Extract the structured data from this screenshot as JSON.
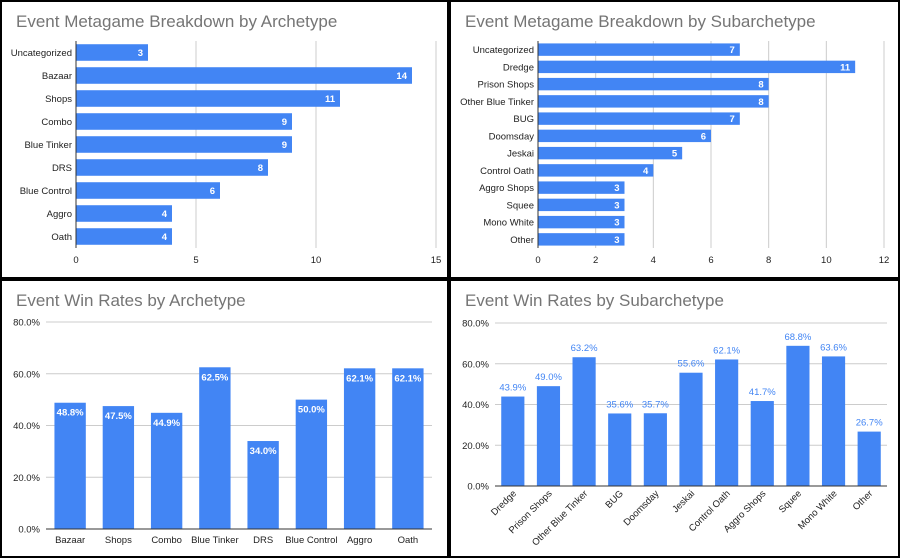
{
  "colors": {
    "bar": "#4285F4",
    "grid": "#cccccc",
    "axis": "#333333",
    "label": "#222222",
    "title": "#757575",
    "value_inside": "#ffffff",
    "value_outside": "#4285F4"
  },
  "chart_data": [
    {
      "type": "bar",
      "orientation": "horizontal",
      "title": "Event Metagame Breakdown by Archetype",
      "categories": [
        "Uncategorized",
        "Bazaar",
        "Shops",
        "Combo",
        "Blue Tinker",
        "DRS",
        "Blue Control",
        "Aggro",
        "Oath"
      ],
      "values": [
        3,
        14,
        11,
        9,
        9,
        8,
        6,
        4,
        4
      ],
      "value_labels": [
        "3",
        "14",
        "11",
        "9",
        "9",
        "8",
        "6",
        "4",
        "4"
      ],
      "xlim": [
        0,
        15
      ],
      "xticks": [
        "0",
        "5",
        "10",
        "15"
      ],
      "xtick_values": [
        0,
        5,
        10,
        15
      ],
      "grid": true,
      "legend": "none"
    },
    {
      "type": "bar",
      "orientation": "horizontal",
      "title": "Event Metagame Breakdown by Subarchetype",
      "categories": [
        "Uncategorized",
        "Dredge",
        "Prison Shops",
        "Other Blue Tinker",
        "BUG",
        "Doomsday",
        "Jeskai",
        "Control Oath",
        "Aggro Shops",
        "Squee",
        "Mono White",
        "Other"
      ],
      "values": [
        7,
        11,
        8,
        8,
        7,
        6,
        5,
        4,
        3,
        3,
        3,
        3
      ],
      "value_labels": [
        "7",
        "11",
        "8",
        "8",
        "7",
        "6",
        "5",
        "4",
        "3",
        "3",
        "3",
        "3"
      ],
      "xlim": [
        0,
        12
      ],
      "xticks": [
        "0",
        "2",
        "4",
        "6",
        "8",
        "10",
        "12"
      ],
      "xtick_values": [
        0,
        2,
        4,
        6,
        8,
        10,
        12
      ],
      "grid": true,
      "legend": "none"
    },
    {
      "type": "bar",
      "orientation": "vertical",
      "title": "Event Win Rates by Archetype",
      "categories": [
        "Bazaar",
        "Shops",
        "Combo",
        "Blue Tinker",
        "DRS",
        "Blue Control",
        "Aggro",
        "Oath"
      ],
      "values": [
        48.8,
        47.5,
        44.9,
        62.5,
        34.0,
        50.0,
        62.1,
        62.1
      ],
      "value_labels": [
        "48.8%",
        "47.5%",
        "44.9%",
        "62.5%",
        "34.0%",
        "50.0%",
        "62.1%",
        "62.1%"
      ],
      "ylim": [
        0,
        80
      ],
      "yticks": [
        "0.0%",
        "20.0%",
        "40.0%",
        "60.0%",
        "80.0%"
      ],
      "ytick_values": [
        0,
        20,
        40,
        60,
        80
      ],
      "grid": true,
      "legend": "none"
    },
    {
      "type": "bar",
      "orientation": "vertical",
      "title": "Event Win Rates by Subarchetype",
      "categories": [
        "Dredge",
        "Prison Shops",
        "Other Blue Tinker",
        "BUG",
        "Doomsday",
        "Jeskai",
        "Control Oath",
        "Aggro Shops",
        "Squee",
        "Mono White",
        "Other"
      ],
      "values": [
        43.9,
        49.0,
        63.2,
        35.6,
        35.7,
        55.6,
        62.1,
        41.7,
        68.8,
        63.6,
        26.7
      ],
      "value_labels": [
        "43.9%",
        "49.0%",
        "63.2%",
        "35.6%",
        "35.7%",
        "55.6%",
        "62.1%",
        "41.7%",
        "68.8%",
        "63.6%",
        "26.7%"
      ],
      "ylim": [
        0,
        80
      ],
      "yticks": [
        "0.0%",
        "20.0%",
        "40.0%",
        "60.0%",
        "80.0%"
      ],
      "ytick_values": [
        0,
        20,
        40,
        60,
        80
      ],
      "grid": true,
      "legend": "none"
    }
  ]
}
